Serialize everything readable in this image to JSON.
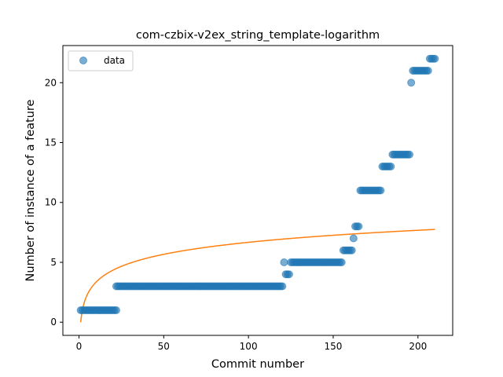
{
  "chart_data": {
    "type": "scatter",
    "title": "com-czbix-v2ex_string_template-logarithm",
    "xlabel": "Commit number",
    "ylabel": "Number of instance of a feature",
    "xlim": [
      -9.5,
      220.5
    ],
    "ylim": [
      -1.1,
      23.1
    ],
    "xticks": [
      0,
      50,
      100,
      150,
      200
    ],
    "yticks": [
      0,
      5,
      10,
      15,
      20
    ],
    "grid": false,
    "legend": {
      "placement": "upper-left",
      "entries": [
        "data"
      ]
    },
    "colors": {
      "data": "#1f77b4",
      "fit": "#ff7f0e"
    },
    "series": [
      {
        "name": "data",
        "kind": "scatter",
        "segments": [
          {
            "x_from": 1,
            "x_to": 22,
            "y": 1
          },
          {
            "x_from": 22,
            "x_to": 120,
            "y": 3
          },
          {
            "x_from": 121,
            "x_to": 121,
            "y": 5
          },
          {
            "x_from": 122,
            "x_to": 124,
            "y": 4
          },
          {
            "x_from": 125,
            "x_to": 155,
            "y": 5
          },
          {
            "x_from": 156,
            "x_to": 161,
            "y": 6
          },
          {
            "x_from": 162,
            "x_to": 162,
            "y": 7
          },
          {
            "x_from": 163,
            "x_to": 165,
            "y": 8
          },
          {
            "x_from": 166,
            "x_to": 178,
            "y": 11
          },
          {
            "x_from": 179,
            "x_to": 184,
            "y": 13
          },
          {
            "x_from": 185,
            "x_to": 195,
            "y": 14
          },
          {
            "x_from": 196,
            "x_to": 196,
            "y": 20
          },
          {
            "x_from": 197,
            "x_to": 206,
            "y": 21
          },
          {
            "x_from": 207,
            "x_to": 210,
            "y": 22
          }
        ]
      },
      {
        "kind": "line",
        "model": "logarithm",
        "a": 1.4487,
        "b": 0.0,
        "x_from": 1,
        "x_to": 210
      }
    ]
  }
}
